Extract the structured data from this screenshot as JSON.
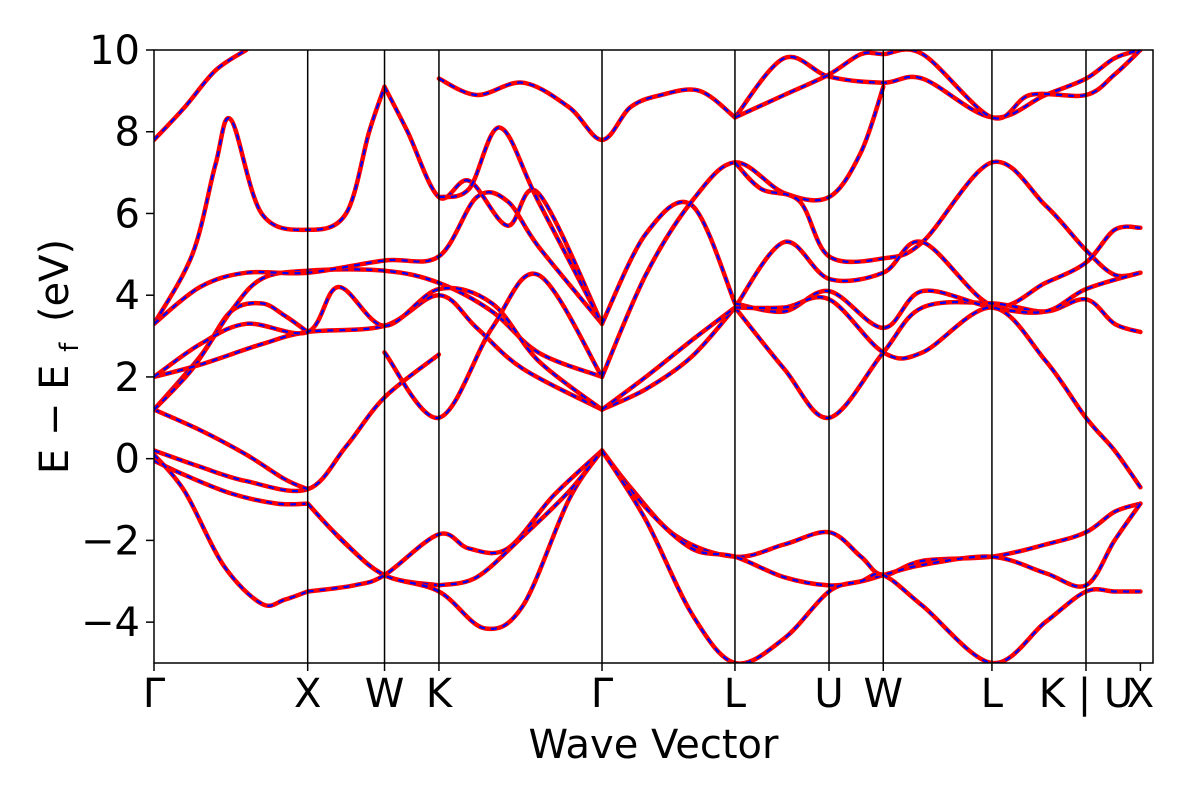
{
  "chart_data": {
    "type": "line",
    "xlabel": "Wave Vector",
    "ylabel": "E − E",
    "ylabel_subscript": "f",
    "ylabel_unit": "(eV)",
    "ylim": [
      -5,
      10
    ],
    "yticks": [
      -4,
      -2,
      0,
      2,
      4,
      6,
      8,
      10
    ],
    "ytick_labels": [
      "−4",
      "−2",
      "0",
      "2",
      "4",
      "6",
      "8",
      "10"
    ],
    "xlim": [
      0,
      6.5
    ],
    "kpoints": [
      {
        "label": "Γ",
        "x": 0.0
      },
      {
        "label": "X",
        "x": 1.0
      },
      {
        "label": "W",
        "x": 1.5
      },
      {
        "label": "K",
        "x": 1.854
      },
      {
        "label": "Γ",
        "x": 2.915
      },
      {
        "label": "L",
        "x": 3.78
      },
      {
        "label": "U",
        "x": 4.392
      },
      {
        "label": "W",
        "x": 4.745
      },
      {
        "label": "L",
        "x": 5.452
      },
      {
        "label": "K | U",
        "x": 6.064
      },
      {
        "label": "X",
        "x": 6.418
      }
    ],
    "colors": {
      "solid": "#ff0000",
      "dashed": "#0000ff"
    },
    "series": [
      {
        "points": [
          [
            0,
            0.2
          ],
          [
            0.3,
            -0.2
          ],
          [
            0.6,
            -0.55
          ],
          [
            1.0,
            -0.75
          ],
          [
            1.25,
            0.3
          ],
          [
            1.5,
            1.5
          ],
          [
            1.854,
            2.55
          ]
        ]
      },
      {
        "points": [
          [
            0,
            -0.05
          ],
          [
            0.2,
            -0.4
          ],
          [
            0.5,
            -0.85
          ],
          [
            0.8,
            -1.1
          ],
          [
            1.0,
            -1.1
          ]
        ]
      },
      {
        "points": [
          [
            0,
            0.1
          ],
          [
            0.2,
            -0.8
          ],
          [
            0.45,
            -2.6
          ],
          [
            0.7,
            -3.55
          ],
          [
            0.85,
            -3.45
          ],
          [
            1.0,
            -3.25
          ]
        ]
      },
      {
        "points": [
          [
            1.0,
            -1.1
          ],
          [
            1.2,
            -1.9
          ],
          [
            1.5,
            -2.85
          ],
          [
            1.854,
            -3.1
          ]
        ]
      },
      {
        "points": [
          [
            1.0,
            -1.1
          ],
          [
            1.25,
            -2.1
          ],
          [
            1.5,
            -2.85
          ],
          [
            1.854,
            -3.25
          ],
          [
            2.15,
            -4.15
          ],
          [
            2.4,
            -3.6
          ],
          [
            2.7,
            -1.0
          ],
          [
            2.915,
            0.2
          ]
        ]
      },
      {
        "points": [
          [
            1.0,
            -3.25
          ],
          [
            1.3,
            -3.1
          ],
          [
            1.5,
            -2.85
          ],
          [
            1.854,
            -1.85
          ],
          [
            2.05,
            -2.2
          ],
          [
            2.3,
            -2.2
          ],
          [
            2.6,
            -0.9
          ],
          [
            2.915,
            0.2
          ]
        ]
      },
      {
        "points": [
          [
            1.854,
            -3.1
          ],
          [
            2.1,
            -2.9
          ],
          [
            2.4,
            -1.9
          ],
          [
            2.7,
            -0.8
          ],
          [
            2.915,
            0.2
          ]
        ]
      },
      {
        "points": [
          [
            2.915,
            0.2
          ],
          [
            3.1,
            -0.7
          ],
          [
            3.4,
            -1.9
          ],
          [
            3.78,
            -2.4
          ],
          [
            4.1,
            -2.1
          ],
          [
            4.392,
            -1.8
          ],
          [
            4.6,
            -2.4
          ],
          [
            4.745,
            -2.85
          ],
          [
            5.0,
            -2.5
          ],
          [
            5.452,
            -2.4
          ],
          [
            5.8,
            -2.1
          ],
          [
            6.064,
            -1.8
          ],
          [
            6.25,
            -1.3
          ],
          [
            6.418,
            -1.1
          ]
        ]
      },
      {
        "points": [
          [
            2.915,
            0.2
          ],
          [
            3.2,
            -1.2
          ],
          [
            3.5,
            -2.2
          ],
          [
            3.78,
            -2.4
          ],
          [
            4.1,
            -2.9
          ],
          [
            4.392,
            -3.1
          ],
          [
            4.6,
            -3.0
          ],
          [
            4.745,
            -2.85
          ],
          [
            5.0,
            -2.6
          ],
          [
            5.452,
            -2.4
          ],
          [
            5.8,
            -2.8
          ],
          [
            6.064,
            -3.1
          ],
          [
            6.25,
            -2.0
          ],
          [
            6.418,
            -1.1
          ]
        ]
      },
      {
        "points": [
          [
            2.915,
            0.2
          ],
          [
            3.2,
            -1.5
          ],
          [
            3.5,
            -3.8
          ],
          [
            3.78,
            -5.0
          ],
          [
            4.1,
            -4.4
          ],
          [
            4.392,
            -3.25
          ],
          [
            4.6,
            -3.0
          ],
          [
            4.745,
            -2.85
          ],
          [
            5.0,
            -3.6
          ],
          [
            5.452,
            -5.0
          ],
          [
            5.8,
            -4.0
          ],
          [
            6.064,
            -3.25
          ],
          [
            6.25,
            -3.25
          ],
          [
            6.418,
            -3.25
          ]
        ]
      },
      {
        "points": [
          [
            0,
            1.2
          ],
          [
            0.3,
            0.7
          ],
          [
            0.6,
            0.1
          ],
          [
            0.85,
            -0.5
          ],
          [
            1.0,
            -0.75
          ]
        ]
      },
      {
        "points": [
          [
            0,
            1.2
          ],
          [
            0.3,
            2.5
          ],
          [
            0.5,
            3.6
          ],
          [
            0.7,
            3.8
          ],
          [
            0.85,
            3.5
          ],
          [
            1.0,
            3.1
          ]
        ]
      },
      {
        "points": [
          [
            0,
            1.2
          ],
          [
            0.25,
            2.2
          ],
          [
            0.5,
            3.6
          ],
          [
            0.7,
            4.4
          ],
          [
            1.0,
            4.6
          ],
          [
            1.5,
            4.6
          ],
          [
            1.854,
            4.3
          ],
          [
            2.2,
            3.6
          ],
          [
            2.5,
            2.6
          ],
          [
            2.915,
            2.0
          ]
        ]
      },
      {
        "points": [
          [
            0,
            2.0
          ],
          [
            0.3,
            2.3
          ],
          [
            0.7,
            2.8
          ],
          [
            1.0,
            3.1
          ],
          [
            1.5,
            3.25
          ],
          [
            1.854,
            4.0
          ],
          [
            2.1,
            3.2
          ],
          [
            2.4,
            2.2
          ],
          [
            2.915,
            1.2
          ]
        ]
      },
      {
        "points": [
          [
            0,
            2.0
          ],
          [
            0.3,
            2.8
          ],
          [
            0.6,
            3.3
          ],
          [
            1.0,
            3.1
          ],
          [
            1.2,
            4.2
          ],
          [
            1.5,
            3.25
          ],
          [
            1.854,
            4.15
          ],
          [
            2.2,
            3.8
          ],
          [
            2.5,
            2.4
          ],
          [
            2.915,
            1.2
          ]
        ]
      },
      {
        "points": [
          [
            0,
            3.3
          ],
          [
            0.25,
            5.0
          ],
          [
            0.4,
            7.2
          ],
          [
            0.5,
            8.3
          ],
          [
            0.7,
            6.0
          ],
          [
            1.0,
            5.6
          ],
          [
            1.25,
            6.0
          ],
          [
            1.4,
            8.0
          ],
          [
            1.5,
            9.1
          ]
        ]
      },
      {
        "points": [
          [
            0,
            3.3
          ],
          [
            0.3,
            4.2
          ],
          [
            0.6,
            4.55
          ],
          [
            1.0,
            4.55
          ],
          [
            1.5,
            4.85
          ],
          [
            1.854,
            4.95
          ],
          [
            2.1,
            6.4
          ],
          [
            2.3,
            6.3
          ],
          [
            2.5,
            5.2
          ],
          [
            2.915,
            3.3
          ]
        ]
      },
      {
        "points": [
          [
            1.5,
            2.6
          ],
          [
            1.854,
            1.0
          ],
          [
            2.2,
            3.2
          ],
          [
            2.5,
            4.5
          ],
          [
            2.915,
            2.0
          ]
        ]
      },
      {
        "points": [
          [
            0,
            7.8
          ],
          [
            0.2,
            8.6
          ],
          [
            0.4,
            9.5
          ],
          [
            0.6,
            10.0
          ]
        ]
      },
      {
        "points": [
          [
            1.5,
            9.1
          ],
          [
            1.65,
            8.0
          ],
          [
            1.854,
            6.4
          ],
          [
            2.05,
            6.8
          ],
          [
            2.3,
            5.7
          ],
          [
            2.5,
            6.5
          ],
          [
            2.915,
            3.3
          ]
        ]
      },
      {
        "points": [
          [
            1.854,
            6.4
          ],
          [
            2.05,
            6.6
          ],
          [
            2.25,
            8.1
          ],
          [
            2.5,
            6.3
          ],
          [
            2.915,
            3.3
          ]
        ]
      },
      {
        "points": [
          [
            1.854,
            9.3
          ],
          [
            2.1,
            8.9
          ],
          [
            2.4,
            9.2
          ],
          [
            2.7,
            8.6
          ],
          [
            2.915,
            7.8
          ],
          [
            3.1,
            8.6
          ],
          [
            3.3,
            8.9
          ],
          [
            3.55,
            9.0
          ],
          [
            3.78,
            8.35
          ]
        ]
      },
      {
        "points": [
          [
            2.915,
            1.2
          ],
          [
            3.2,
            1.7
          ],
          [
            3.5,
            2.5
          ],
          [
            3.78,
            3.7
          ]
        ]
      },
      {
        "points": [
          [
            2.915,
            1.2
          ],
          [
            3.2,
            2.0
          ],
          [
            3.5,
            2.9
          ],
          [
            3.78,
            3.7
          ]
        ]
      },
      {
        "points": [
          [
            2.915,
            3.3
          ],
          [
            3.2,
            5.5
          ],
          [
            3.5,
            6.2
          ],
          [
            3.78,
            3.8
          ]
        ]
      },
      {
        "points": [
          [
            2.915,
            2.0
          ],
          [
            3.2,
            4.5
          ],
          [
            3.5,
            6.3
          ],
          [
            3.78,
            7.25
          ],
          [
            4.1,
            6.5
          ],
          [
            4.392,
            6.4
          ],
          [
            4.6,
            7.5
          ],
          [
            4.745,
            9.1
          ]
        ]
      },
      {
        "points": [
          [
            3.78,
            7.25
          ],
          [
            3.95,
            6.6
          ],
          [
            4.2,
            6.3
          ],
          [
            4.392,
            4.95
          ],
          [
            4.745,
            4.9
          ],
          [
            5.0,
            5.3
          ],
          [
            5.452,
            7.25
          ],
          [
            5.8,
            6.2
          ],
          [
            6.064,
            5.1
          ],
          [
            6.25,
            4.5
          ],
          [
            6.418,
            4.55
          ]
        ]
      },
      {
        "points": [
          [
            3.78,
            3.7
          ],
          [
            4.1,
            5.3
          ],
          [
            4.392,
            4.4
          ],
          [
            4.745,
            4.55
          ],
          [
            5.0,
            5.3
          ],
          [
            5.452,
            3.75
          ],
          [
            5.8,
            4.3
          ],
          [
            6.064,
            4.8
          ],
          [
            6.25,
            5.6
          ],
          [
            6.418,
            5.65
          ]
        ]
      },
      {
        "points": [
          [
            3.78,
            3.7
          ],
          [
            4.1,
            2.2
          ],
          [
            4.392,
            1.0
          ],
          [
            4.745,
            2.6
          ],
          [
            5.0,
            3.7
          ],
          [
            5.452,
            3.8
          ],
          [
            5.8,
            3.6
          ],
          [
            6.064,
            3.9
          ],
          [
            6.25,
            3.3
          ],
          [
            6.418,
            3.1
          ]
        ]
      },
      {
        "points": [
          [
            3.78,
            3.8
          ],
          [
            4.1,
            3.6
          ],
          [
            4.392,
            4.1
          ],
          [
            4.745,
            3.2
          ],
          [
            5.0,
            4.1
          ],
          [
            5.452,
            3.7
          ],
          [
            5.8,
            3.6
          ],
          [
            6.064,
            4.15
          ],
          [
            6.418,
            4.55
          ]
        ]
      },
      {
        "points": [
          [
            3.78,
            3.7
          ],
          [
            4.1,
            3.7
          ],
          [
            4.392,
            3.9
          ],
          [
            4.745,
            2.6
          ],
          [
            5.0,
            2.6
          ],
          [
            5.452,
            3.7
          ],
          [
            5.8,
            2.4
          ],
          [
            6.064,
            1.0
          ],
          [
            6.25,
            0.2
          ],
          [
            6.418,
            -0.7
          ]
        ]
      },
      {
        "points": [
          [
            3.78,
            8.35
          ],
          [
            4.1,
            9.8
          ],
          [
            4.392,
            9.35
          ],
          [
            4.745,
            9.2
          ],
          [
            5.0,
            9.3
          ],
          [
            5.452,
            8.35
          ],
          [
            5.8,
            8.9
          ],
          [
            6.064,
            9.3
          ],
          [
            6.25,
            9.8
          ],
          [
            6.418,
            10.0
          ]
        ]
      },
      {
        "points": [
          [
            3.78,
            8.35
          ],
          [
            4.1,
            8.9
          ],
          [
            4.392,
            9.4
          ],
          [
            4.6,
            9.9
          ],
          [
            4.745,
            9.9
          ],
          [
            5.0,
            9.9
          ],
          [
            5.452,
            8.35
          ],
          [
            5.7,
            8.9
          ],
          [
            6.064,
            8.9
          ],
          [
            6.25,
            9.4
          ],
          [
            6.418,
            10.0
          ]
        ]
      }
    ]
  }
}
